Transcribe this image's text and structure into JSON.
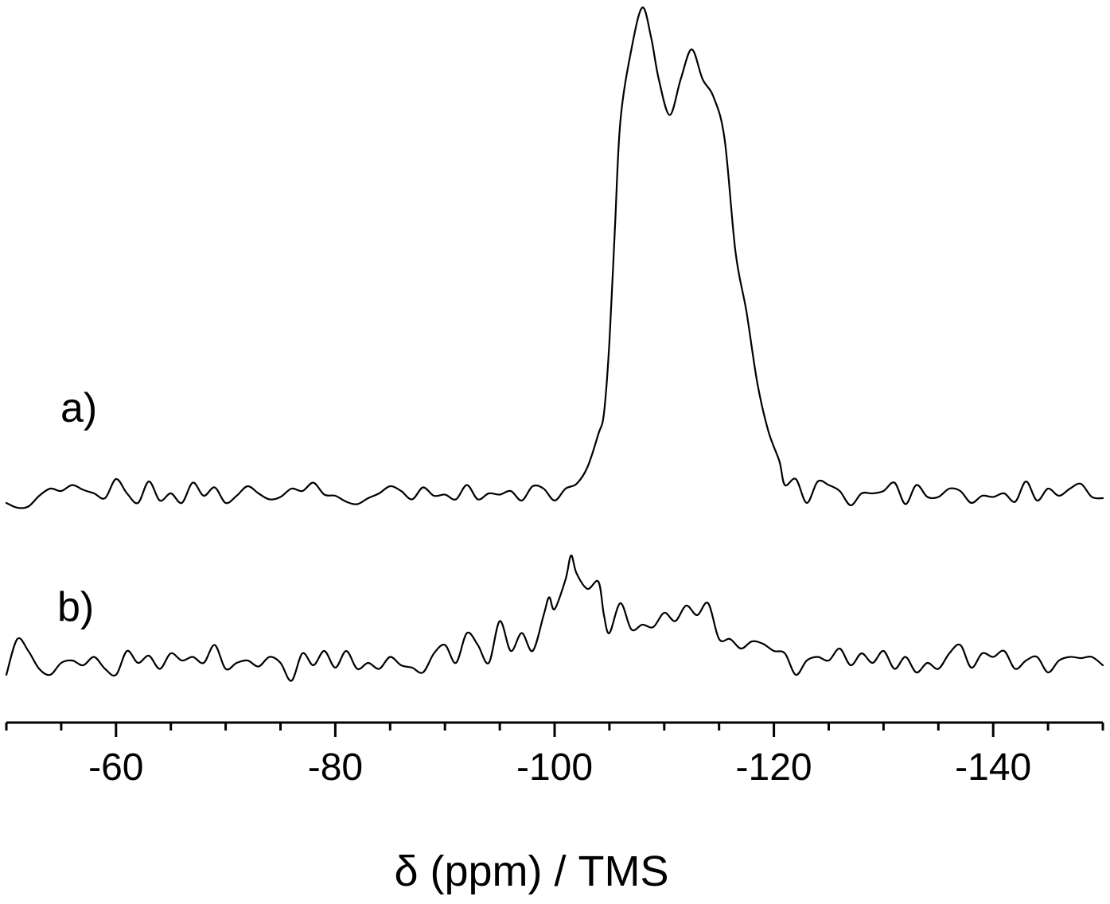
{
  "chart_data": {
    "type": "line",
    "xlabel": "δ (ppm) / TMS",
    "ylabel": "",
    "xlim": [
      -50,
      -150
    ],
    "x_reversed": true,
    "x_ticks": [
      -60,
      -80,
      -100,
      -120,
      -140
    ],
    "x_tick_labels": [
      "-60",
      "-80",
      "-100",
      "-120",
      "-140"
    ],
    "minor_tick_step": 5,
    "y_axis_visible": false,
    "grid": false,
    "line_color": "#000000",
    "series": [
      {
        "name": "a)",
        "offset": 1.0,
        "points": [
          [
            -50,
            0.0
          ],
          [
            -51,
            -0.04
          ],
          [
            -52,
            -0.03
          ],
          [
            -53,
            0.06
          ],
          [
            -54,
            0.12
          ],
          [
            -55,
            0.1
          ],
          [
            -56,
            0.15
          ],
          [
            -57,
            0.11
          ],
          [
            -58,
            0.08
          ],
          [
            -59,
            0.04
          ],
          [
            -60,
            0.2
          ],
          [
            -61,
            0.08
          ],
          [
            -62,
            0.0
          ],
          [
            -63,
            0.18
          ],
          [
            -64,
            0.02
          ],
          [
            -65,
            0.08
          ],
          [
            -66,
            0.0
          ],
          [
            -67,
            0.17
          ],
          [
            -68,
            0.06
          ],
          [
            -69,
            0.13
          ],
          [
            -70,
            0.0
          ],
          [
            -71,
            0.06
          ],
          [
            -72,
            0.14
          ],
          [
            -73,
            0.08
          ],
          [
            -74,
            0.03
          ],
          [
            -75,
            0.05
          ],
          [
            -76,
            0.12
          ],
          [
            -77,
            0.1
          ],
          [
            -78,
            0.17
          ],
          [
            -79,
            0.07
          ],
          [
            -80,
            0.06
          ],
          [
            -81,
            0.01
          ],
          [
            -82,
            -0.01
          ],
          [
            -83,
            0.04
          ],
          [
            -84,
            0.08
          ],
          [
            -85,
            0.14
          ],
          [
            -86,
            0.1
          ],
          [
            -87,
            0.03
          ],
          [
            -88,
            0.13
          ],
          [
            -89,
            0.06
          ],
          [
            -90,
            0.07
          ],
          [
            -91,
            0.03
          ],
          [
            -92,
            0.15
          ],
          [
            -93,
            0.03
          ],
          [
            -94,
            0.08
          ],
          [
            -95,
            0.07
          ],
          [
            -96,
            0.1
          ],
          [
            -97,
            0.02
          ],
          [
            -98,
            0.14
          ],
          [
            -99,
            0.12
          ],
          [
            -100,
            0.02
          ],
          [
            -101,
            0.12
          ],
          [
            -102,
            0.16
          ],
          [
            -103,
            0.3
          ],
          [
            -104,
            0.58
          ],
          [
            -104.5,
            0.75
          ],
          [
            -105,
            1.35
          ],
          [
            -105.5,
            2.3
          ],
          [
            -106,
            3.2
          ],
          [
            -107,
            3.8
          ],
          [
            -108,
            4.15
          ],
          [
            -108.8,
            3.9
          ],
          [
            -109.5,
            3.55
          ],
          [
            -110.5,
            3.25
          ],
          [
            -111.5,
            3.55
          ],
          [
            -112.5,
            3.8
          ],
          [
            -113.5,
            3.55
          ],
          [
            -114.5,
            3.4
          ],
          [
            -115.5,
            3.05
          ],
          [
            -116.5,
            2.1
          ],
          [
            -117.5,
            1.6
          ],
          [
            -118.5,
            1.0
          ],
          [
            -119.5,
            0.6
          ],
          [
            -120.5,
            0.35
          ],
          [
            -121,
            0.15
          ],
          [
            -122,
            0.2
          ],
          [
            -123,
            0.0
          ],
          [
            -124,
            0.18
          ],
          [
            -125,
            0.15
          ],
          [
            -126,
            0.1
          ],
          [
            -127,
            -0.02
          ],
          [
            -128,
            0.08
          ],
          [
            -129,
            0.08
          ],
          [
            -130,
            0.1
          ],
          [
            -131,
            0.17
          ],
          [
            -132,
            -0.01
          ],
          [
            -133,
            0.15
          ],
          [
            -134,
            0.05
          ],
          [
            -135,
            0.05
          ],
          [
            -136,
            0.12
          ],
          [
            -137,
            0.1
          ],
          [
            -138,
            0.0
          ],
          [
            -139,
            0.06
          ],
          [
            -140,
            0.05
          ],
          [
            -141,
            0.08
          ],
          [
            -142,
            0.01
          ],
          [
            -143,
            0.18
          ],
          [
            -144,
            0.02
          ],
          [
            -145,
            0.12
          ],
          [
            -146,
            0.06
          ],
          [
            -147,
            0.12
          ],
          [
            -148,
            0.16
          ],
          [
            -149,
            0.05
          ],
          [
            -150,
            0.04
          ]
        ]
      },
      {
        "name": "b)",
        "offset": 0.0,
        "points": [
          [
            -50,
            0.0
          ],
          [
            -51,
            0.3
          ],
          [
            -52,
            0.2
          ],
          [
            -53,
            0.05
          ],
          [
            -54,
            0.0
          ],
          [
            -55,
            0.1
          ],
          [
            -56,
            0.12
          ],
          [
            -57,
            0.08
          ],
          [
            -58,
            0.15
          ],
          [
            -59,
            0.05
          ],
          [
            -60,
            0.0
          ],
          [
            -61,
            0.2
          ],
          [
            -62,
            0.1
          ],
          [
            -63,
            0.16
          ],
          [
            -64,
            0.05
          ],
          [
            -65,
            0.18
          ],
          [
            -66,
            0.12
          ],
          [
            -67,
            0.15
          ],
          [
            -68,
            0.1
          ],
          [
            -69,
            0.25
          ],
          [
            -70,
            0.05
          ],
          [
            -71,
            0.1
          ],
          [
            -72,
            0.12
          ],
          [
            -73,
            0.07
          ],
          [
            -74,
            0.15
          ],
          [
            -75,
            0.1
          ],
          [
            -76,
            -0.05
          ],
          [
            -77,
            0.18
          ],
          [
            -78,
            0.08
          ],
          [
            -79,
            0.2
          ],
          [
            -80,
            0.06
          ],
          [
            -81,
            0.2
          ],
          [
            -82,
            0.05
          ],
          [
            -83,
            0.1
          ],
          [
            -84,
            0.05
          ],
          [
            -85,
            0.15
          ],
          [
            -86,
            0.08
          ],
          [
            -87,
            0.06
          ],
          [
            -88,
            0.02
          ],
          [
            -89,
            0.18
          ],
          [
            -90,
            0.25
          ],
          [
            -91,
            0.1
          ],
          [
            -92,
            0.35
          ],
          [
            -93,
            0.25
          ],
          [
            -94,
            0.1
          ],
          [
            -95,
            0.45
          ],
          [
            -96,
            0.2
          ],
          [
            -97,
            0.35
          ],
          [
            -98,
            0.2
          ],
          [
            -99,
            0.5
          ],
          [
            -99.5,
            0.65
          ],
          [
            -100,
            0.55
          ],
          [
            -101,
            0.8
          ],
          [
            -101.5,
            1.0
          ],
          [
            -102,
            0.85
          ],
          [
            -103,
            0.72
          ],
          [
            -104,
            0.78
          ],
          [
            -104.5,
            0.5
          ],
          [
            -105,
            0.35
          ],
          [
            -106,
            0.6
          ],
          [
            -107,
            0.38
          ],
          [
            -108,
            0.42
          ],
          [
            -109,
            0.4
          ],
          [
            -110,
            0.52
          ],
          [
            -111,
            0.45
          ],
          [
            -112,
            0.58
          ],
          [
            -113,
            0.5
          ],
          [
            -114,
            0.6
          ],
          [
            -115,
            0.3
          ],
          [
            -116,
            0.3
          ],
          [
            -117,
            0.22
          ],
          [
            -118,
            0.28
          ],
          [
            -119,
            0.26
          ],
          [
            -120,
            0.2
          ],
          [
            -121,
            0.18
          ],
          [
            -122,
            0.0
          ],
          [
            -123,
            0.12
          ],
          [
            -124,
            0.15
          ],
          [
            -125,
            0.12
          ],
          [
            -126,
            0.22
          ],
          [
            -127,
            0.08
          ],
          [
            -128,
            0.18
          ],
          [
            -129,
            0.1
          ],
          [
            -130,
            0.2
          ],
          [
            -131,
            0.05
          ],
          [
            -132,
            0.15
          ],
          [
            -133,
            0.02
          ],
          [
            -134,
            0.1
          ],
          [
            -135,
            0.05
          ],
          [
            -136,
            0.18
          ],
          [
            -137,
            0.25
          ],
          [
            -138,
            0.06
          ],
          [
            -139,
            0.18
          ],
          [
            -140,
            0.15
          ],
          [
            -141,
            0.2
          ],
          [
            -142,
            0.05
          ],
          [
            -143,
            0.12
          ],
          [
            -144,
            0.15
          ],
          [
            -145,
            0.02
          ],
          [
            -146,
            0.12
          ],
          [
            -147,
            0.15
          ],
          [
            -148,
            0.14
          ],
          [
            -149,
            0.15
          ],
          [
            -150,
            0.08
          ]
        ]
      }
    ]
  }
}
